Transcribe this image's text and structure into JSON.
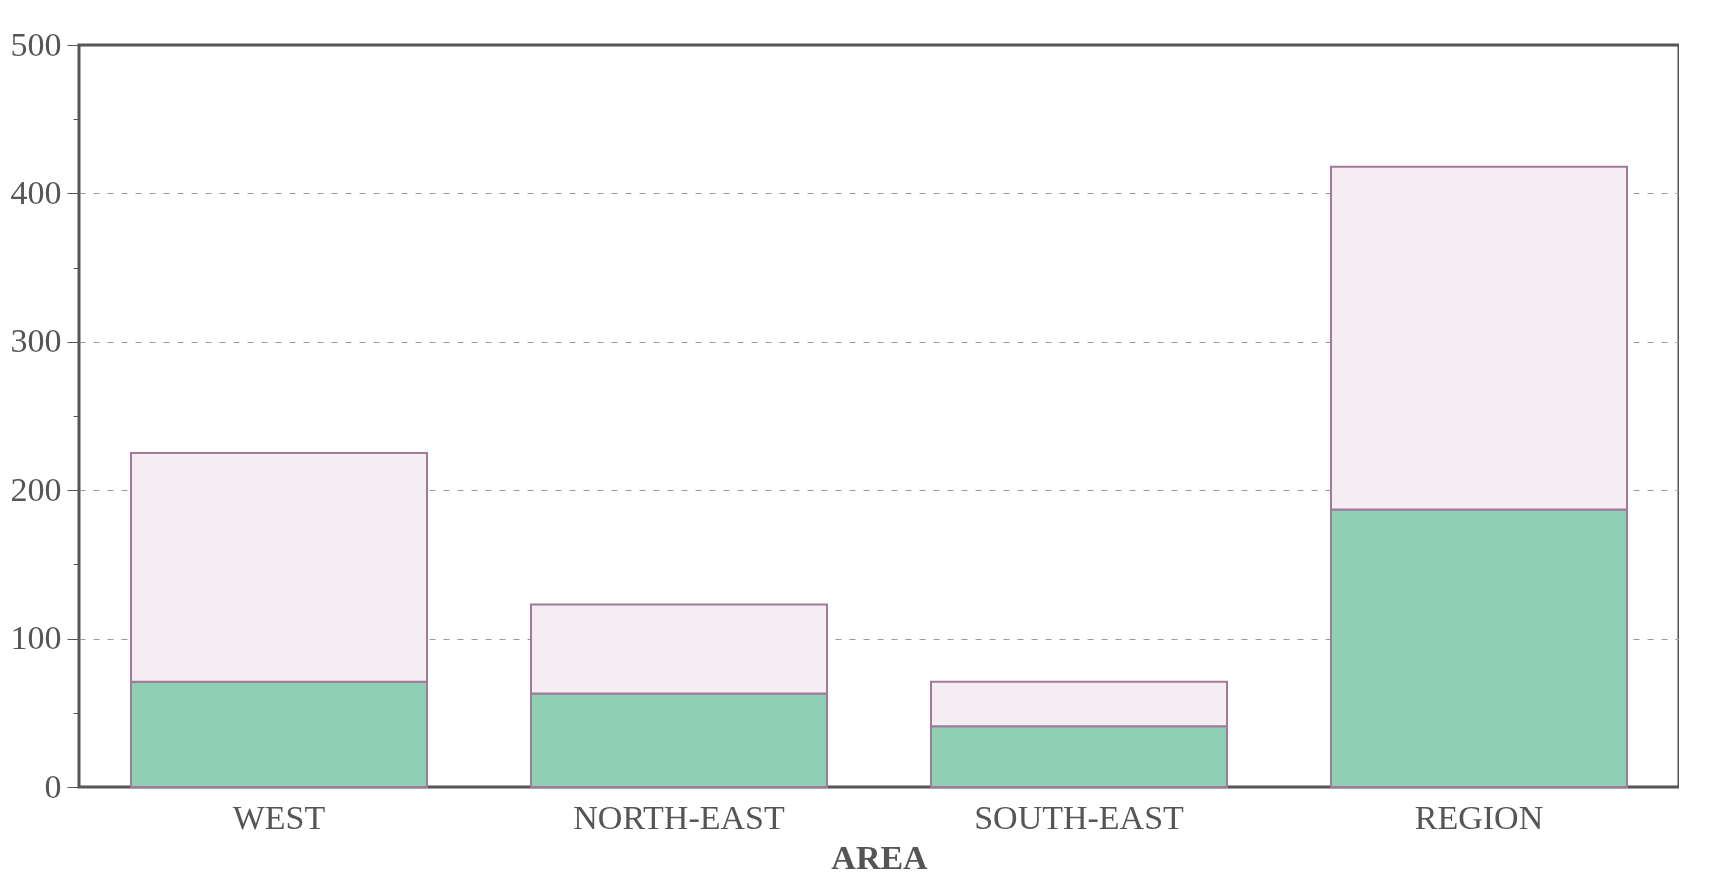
{
  "chart_data": {
    "type": "bar",
    "xlabel": "AREA",
    "categories": [
      "WEST",
      "NORTH-EAST",
      "SOUTH-EAST",
      "REGION"
    ],
    "stacked": true,
    "series": [
      {
        "color": "#8fd0b4",
        "values": [
          71,
          63,
          41,
          187
        ]
      },
      {
        "color": "#f4eef3",
        "values": [
          154,
          60,
          30,
          231
        ]
      }
    ],
    "ylim": [
      0,
      500
    ],
    "yticks": [
      0,
      {
        "value": 50,
        "label": null
      },
      100,
      {
        "value": 150,
        "label": null
      },
      200,
      {
        "value": 250,
        "label": null
      },
      300,
      {
        "value": 350,
        "label": null
      },
      400,
      {
        "value": 450,
        "label": null
      },
      500
    ],
    "grid": "y",
    "legend": false
  }
}
